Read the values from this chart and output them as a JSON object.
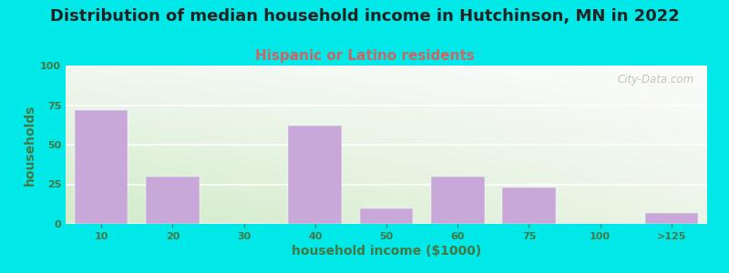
{
  "title": "Distribution of median household income in Hutchinson, MN in 2022",
  "subtitle": "Hispanic or Latino residents",
  "xlabel": "household income ($1000)",
  "ylabel": "households",
  "bar_labels": [
    "10",
    "20",
    "30",
    "40",
    "50",
    "60",
    "75",
    "100",
    ">125"
  ],
  "bar_values": [
    72,
    30,
    0,
    62,
    10,
    30,
    23,
    0,
    7
  ],
  "bar_color": "#c8a8d8",
  "background_outer": "#00e8e8",
  "background_plot_topleft": "#eaf0e4",
  "background_plot_topright": "#f5f5f5",
  "background_plot_bottomleft": "#deecd4",
  "background_plot_bottomright": "#f0f0f0",
  "title_fontsize": 13,
  "title_color": "#222222",
  "subtitle_fontsize": 11,
  "subtitle_color": "#cc6666",
  "ylabel_color": "#447744",
  "xlabel_color": "#447744",
  "tick_color": "#447744",
  "tick_fontsize": 8,
  "label_fontsize": 10,
  "ylim": [
    0,
    100
  ],
  "yticks": [
    0,
    25,
    50,
    75,
    100
  ],
  "watermark": "City-Data.com"
}
